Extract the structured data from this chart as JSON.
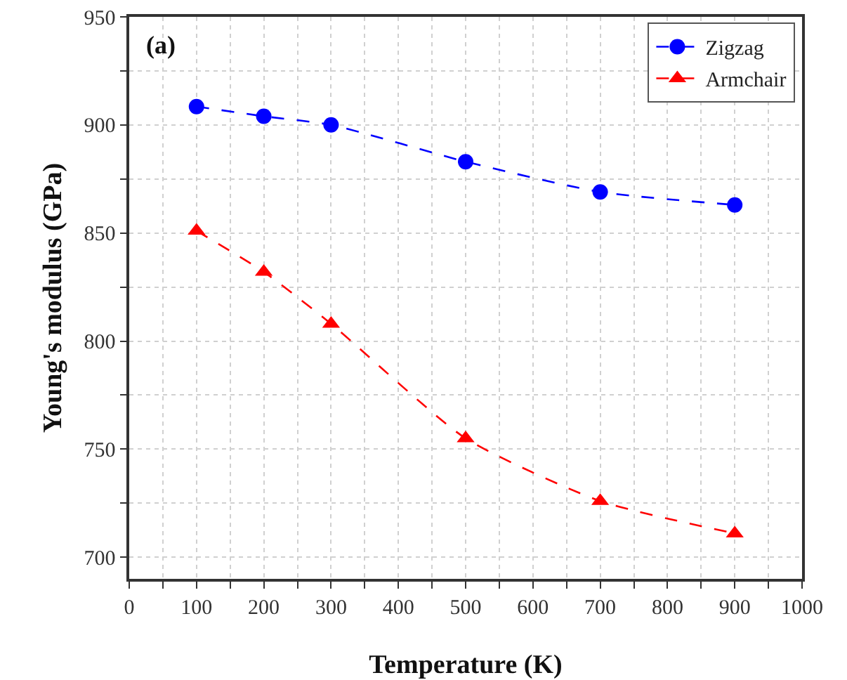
{
  "chart_data": {
    "type": "line",
    "xlabel": "Temperature (K)",
    "ylabel": "Young's modulus (GPa)",
    "annotations": [
      "(a)"
    ],
    "x": [
      100,
      200,
      300,
      500,
      700,
      900
    ],
    "series": [
      {
        "name": "Zigzag",
        "color": "#0000ff",
        "marker": "circle",
        "values": [
          908.5,
          904,
          900,
          883,
          869,
          863
        ]
      },
      {
        "name": "Armchair",
        "color": "#ff0000",
        "marker": "triangle",
        "values": [
          851,
          832,
          808,
          755,
          726,
          711
        ]
      }
    ],
    "xlim": [
      0,
      1000
    ],
    "xticks": [
      0,
      {
        "value": 50,
        "label": null
      },
      100,
      {
        "value": 150,
        "label": null
      },
      200,
      {
        "value": 250,
        "label": null
      },
      300,
      {
        "value": 350,
        "label": null
      },
      400,
      {
        "value": 450,
        "label": null
      },
      500,
      {
        "value": 550,
        "label": null
      },
      600,
      {
        "value": 650,
        "label": null
      },
      700,
      {
        "value": 750,
        "label": null
      },
      800,
      {
        "value": 850,
        "label": null
      },
      900,
      {
        "value": 950,
        "label": null
      },
      1000
    ],
    "ylim": [
      690,
      950
    ],
    "yticks": [
      700,
      {
        "value": 725,
        "label": null
      },
      750,
      {
        "value": 775,
        "label": null
      },
      800,
      {
        "value": 825,
        "label": null
      },
      850,
      {
        "value": 875,
        "label": null
      },
      900,
      {
        "value": 925,
        "label": null
      },
      950
    ],
    "grid": true,
    "legend": "top right",
    "line_style": "dashed"
  }
}
